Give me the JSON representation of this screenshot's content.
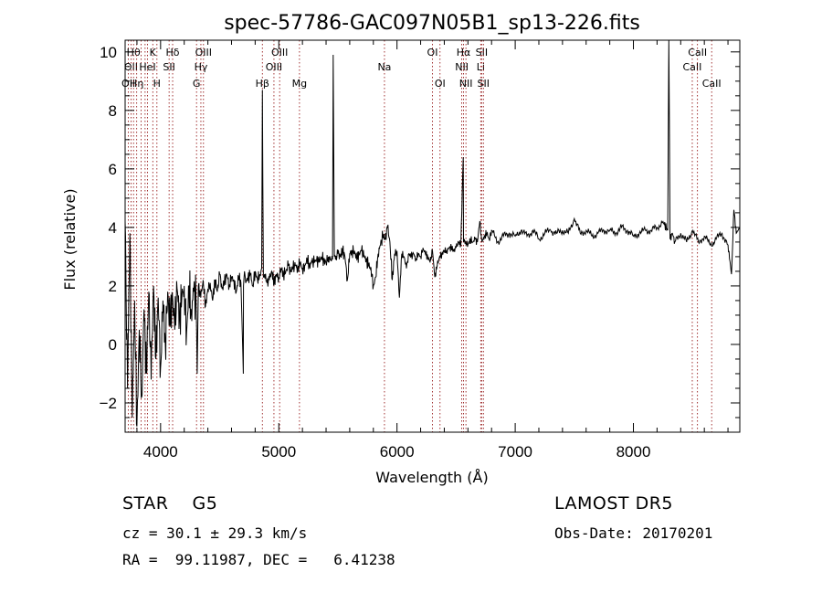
{
  "chart_data": {
    "type": "line",
    "title": "spec-57786-GAC097N05B1_sp13-226.fits",
    "xlabel": "Wavelength (Å)",
    "ylabel": "Flux (relative)",
    "xlim": [
      3700,
      8900
    ],
    "ylim": [
      -3,
      10.4
    ],
    "xticks": [
      4000,
      5000,
      6000,
      7000,
      8000
    ],
    "yticks": [
      -2,
      0,
      2,
      4,
      6,
      8,
      10
    ],
    "grid": false,
    "series": [
      {
        "values_desc": "spectrum flux",
        "x": [
          3700,
          3720,
          3740,
          3760,
          3780,
          3800,
          3820,
          3840,
          3860,
          3880,
          3900,
          3920,
          3940,
          3960,
          3980,
          4000,
          4020,
          4040,
          4060,
          4080,
          4100,
          4120,
          4140,
          4160,
          4180,
          4200,
          4220,
          4240,
          4260,
          4280,
          4300,
          4310,
          4320,
          4340,
          4360,
          4380,
          4400,
          4420,
          4440,
          4460,
          4480,
          4500,
          4520,
          4540,
          4560,
          4580,
          4600,
          4620,
          4640,
          4660,
          4680,
          4700,
          4701,
          4710,
          4720,
          4740,
          4760,
          4780,
          4800,
          4820,
          4840,
          4855,
          4861,
          4870,
          4880,
          4900,
          4920,
          4940,
          4960,
          4980,
          5000,
          5020,
          5040,
          5060,
          5080,
          5100,
          5120,
          5140,
          5160,
          5180,
          5200,
          5220,
          5240,
          5260,
          5280,
          5300,
          5320,
          5340,
          5360,
          5380,
          5400,
          5420,
          5440,
          5455,
          5460,
          5470,
          5480,
          5500,
          5520,
          5540,
          5560,
          5580,
          5600,
          5620,
          5640,
          5660,
          5680,
          5700,
          5720,
          5740,
          5760,
          5780,
          5800,
          5820,
          5840,
          5860,
          5880,
          5900,
          5920,
          5940,
          5960,
          5980,
          6000,
          6020,
          6040,
          6060,
          6080,
          6100,
          6120,
          6140,
          6160,
          6180,
          6200,
          6220,
          6240,
          6260,
          6280,
          6300,
          6320,
          6340,
          6360,
          6380,
          6400,
          6420,
          6440,
          6460,
          6480,
          6500,
          6520,
          6540,
          6560,
          6563,
          6570,
          6580,
          6600,
          6620,
          6640,
          6660,
          6680,
          6700,
          6716,
          6720,
          6740,
          6760,
          6780,
          6800,
          6850,
          6900,
          6950,
          7000,
          7050,
          7100,
          7150,
          7200,
          7250,
          7300,
          7350,
          7400,
          7450,
          7500,
          7550,
          7600,
          7650,
          7700,
          7750,
          7800,
          7850,
          7900,
          7950,
          8000,
          8050,
          8100,
          8150,
          8200,
          8250,
          8290,
          8300,
          8310,
          8330,
          8350,
          8400,
          8450,
          8500,
          8550,
          8600,
          8650,
          8700,
          8750,
          8800,
          8830,
          8850,
          8870,
          8900
        ],
        "y": [
          4.2,
          -1.5,
          3.8,
          -2.5,
          1.5,
          -2.8,
          0.5,
          -1.8,
          1.2,
          -1.0,
          1.8,
          -1.2,
          2.0,
          -0.5,
          1.6,
          -0.8,
          1.5,
          0.0,
          1.8,
          0.6,
          1.7,
          0.5,
          1.9,
          0.9,
          1.6,
          2.0,
          0.4,
          2.0,
          1.1,
          1.8,
          1.5,
          -1.0,
          2.0,
          1.6,
          2.2,
          1.3,
          1.9,
          2.1,
          1.5,
          2.2,
          1.8,
          2.4,
          1.9,
          2.1,
          2.4,
          2.0,
          2.3,
          2.2,
          1.8,
          2.3,
          2.1,
          -1.0,
          2.0,
          2.5,
          2.1,
          2.3,
          2.4,
          2.0,
          2.5,
          2.2,
          2.4,
          2.6,
          8.7,
          2.3,
          2.4,
          2.1,
          2.2,
          2.5,
          2.1,
          2.4,
          2.3,
          2.6,
          2.4,
          2.5,
          2.7,
          2.5,
          2.6,
          2.7,
          2.6,
          2.8,
          2.6,
          2.7,
          2.9,
          2.7,
          2.8,
          2.8,
          2.9,
          2.8,
          3.0,
          2.9,
          2.8,
          3.0,
          2.9,
          2.9,
          9.9,
          3.0,
          2.9,
          3.1,
          3.0,
          3.2,
          3.0,
          2.2,
          3.1,
          3.2,
          3.2,
          2.9,
          3.1,
          3.2,
          3.0,
          2.9,
          2.7,
          2.6,
          2.0,
          2.3,
          3.1,
          3.4,
          3.7,
          3.6,
          4.0,
          3.5,
          2.2,
          3.1,
          3.2,
          1.6,
          3.1,
          3.0,
          2.6,
          3.1,
          3.0,
          3.1,
          2.9,
          3.1,
          3.0,
          3.3,
          3.1,
          3.0,
          2.8,
          3.2,
          2.3,
          2.7,
          3.0,
          3.1,
          3.2,
          3.2,
          3.3,
          3.3,
          3.2,
          3.3,
          3.5,
          3.4,
          6.4,
          3.5,
          3.6,
          3.5,
          3.4,
          3.6,
          3.5,
          3.6,
          3.5,
          4.2,
          3.6,
          3.5,
          3.7,
          3.8,
          3.6,
          3.9,
          3.5,
          3.7,
          3.8,
          3.7,
          3.9,
          3.7,
          3.9,
          3.6,
          3.8,
          3.9,
          3.8,
          3.9,
          3.8,
          4.3,
          3.8,
          3.9,
          3.7,
          3.8,
          3.9,
          3.9,
          3.8,
          4.0,
          3.9,
          3.7,
          3.8,
          3.9,
          3.9,
          4.0,
          4.2,
          3.9,
          10.4,
          3.6,
          3.8,
          3.5,
          3.8,
          3.5,
          3.9,
          3.5,
          3.7,
          3.4,
          3.6,
          3.8,
          3.4,
          2.4,
          4.6,
          3.8,
          4.0
        ]
      }
    ],
    "line_markers": [
      {
        "wl": 3728,
        "label": "OII",
        "row": 3
      },
      {
        "wl": 3750,
        "label": "OII",
        "row": 2
      },
      {
        "wl": 3771,
        "label": "Hθ",
        "row": 1
      },
      {
        "wl": 3798,
        "label": "Hη",
        "row": 3
      },
      {
        "wl": 3835,
        "label": "",
        "row": 0
      },
      {
        "wl": 3869,
        "label": "",
        "row": 0
      },
      {
        "wl": 3889,
        "label": "HeI",
        "row": 2
      },
      {
        "wl": 3934,
        "label": "K",
        "row": 1
      },
      {
        "wl": 3969,
        "label": "H",
        "row": 3
      },
      {
        "wl": 4072,
        "label": "SII",
        "row": 2
      },
      {
        "wl": 4102,
        "label": "Hδ",
        "row": 1
      },
      {
        "wl": 4304,
        "label": "G",
        "row": 3
      },
      {
        "wl": 4341,
        "label": "Hγ",
        "row": 2
      },
      {
        "wl": 4363,
        "label": "OIII",
        "row": 1
      },
      {
        "wl": 4861,
        "label": "Hβ",
        "row": 3
      },
      {
        "wl": 4959,
        "label": "OIII",
        "row": 2
      },
      {
        "wl": 5007,
        "label": "OIII",
        "row": 1
      },
      {
        "wl": 5175,
        "label": "Mg",
        "row": 3
      },
      {
        "wl": 5894,
        "label": "Na",
        "row": 2
      },
      {
        "wl": 6300,
        "label": "OI",
        "row": 1
      },
      {
        "wl": 6364,
        "label": "OI",
        "row": 3
      },
      {
        "wl": 6548,
        "label": "NII",
        "row": 2
      },
      {
        "wl": 6563,
        "label": "Hα",
        "row": 1
      },
      {
        "wl": 6583,
        "label": "NII",
        "row": 3
      },
      {
        "wl": 6708,
        "label": "Li",
        "row": 2
      },
      {
        "wl": 6716,
        "label": "SII",
        "row": 1
      },
      {
        "wl": 6731,
        "label": "SII",
        "row": 3
      },
      {
        "wl": 8498,
        "label": "CaII",
        "row": 2
      },
      {
        "wl": 8542,
        "label": "CaII",
        "row": 1
      },
      {
        "wl": 8662,
        "label": "CaII",
        "row": 3
      }
    ]
  },
  "footer": {
    "classification": "STAR    G5",
    "redshift": "cz = 30.1 ± 29.3 km/s",
    "coords": "RA =  99.11987, DEC =   6.41238",
    "survey": "LAMOST DR5",
    "obs_date": "Obs-Date: 20170201"
  },
  "colors": {
    "marker": "#8b0000",
    "spectrum": "#000000"
  }
}
